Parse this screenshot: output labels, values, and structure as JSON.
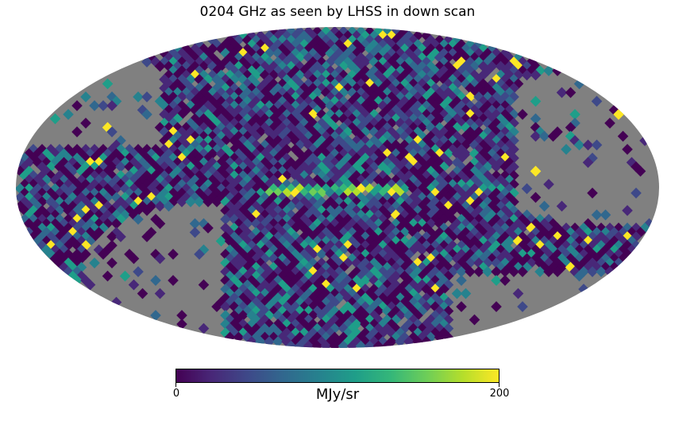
{
  "title": "0204 GHz as seen by LHSS in down scan",
  "projection": "mollweide",
  "colormap": "viridis",
  "colormap_stops": [
    "#440154",
    "#482878",
    "#3e4989",
    "#31688e",
    "#26828e",
    "#1f9e89",
    "#35b779",
    "#6ece58",
    "#b5de2b",
    "#fde725"
  ],
  "missing_color": "#808080",
  "colorbar": {
    "min_label": "0",
    "max_label": "200",
    "unit": "MJy/sr",
    "range": [
      0,
      200
    ]
  }
}
